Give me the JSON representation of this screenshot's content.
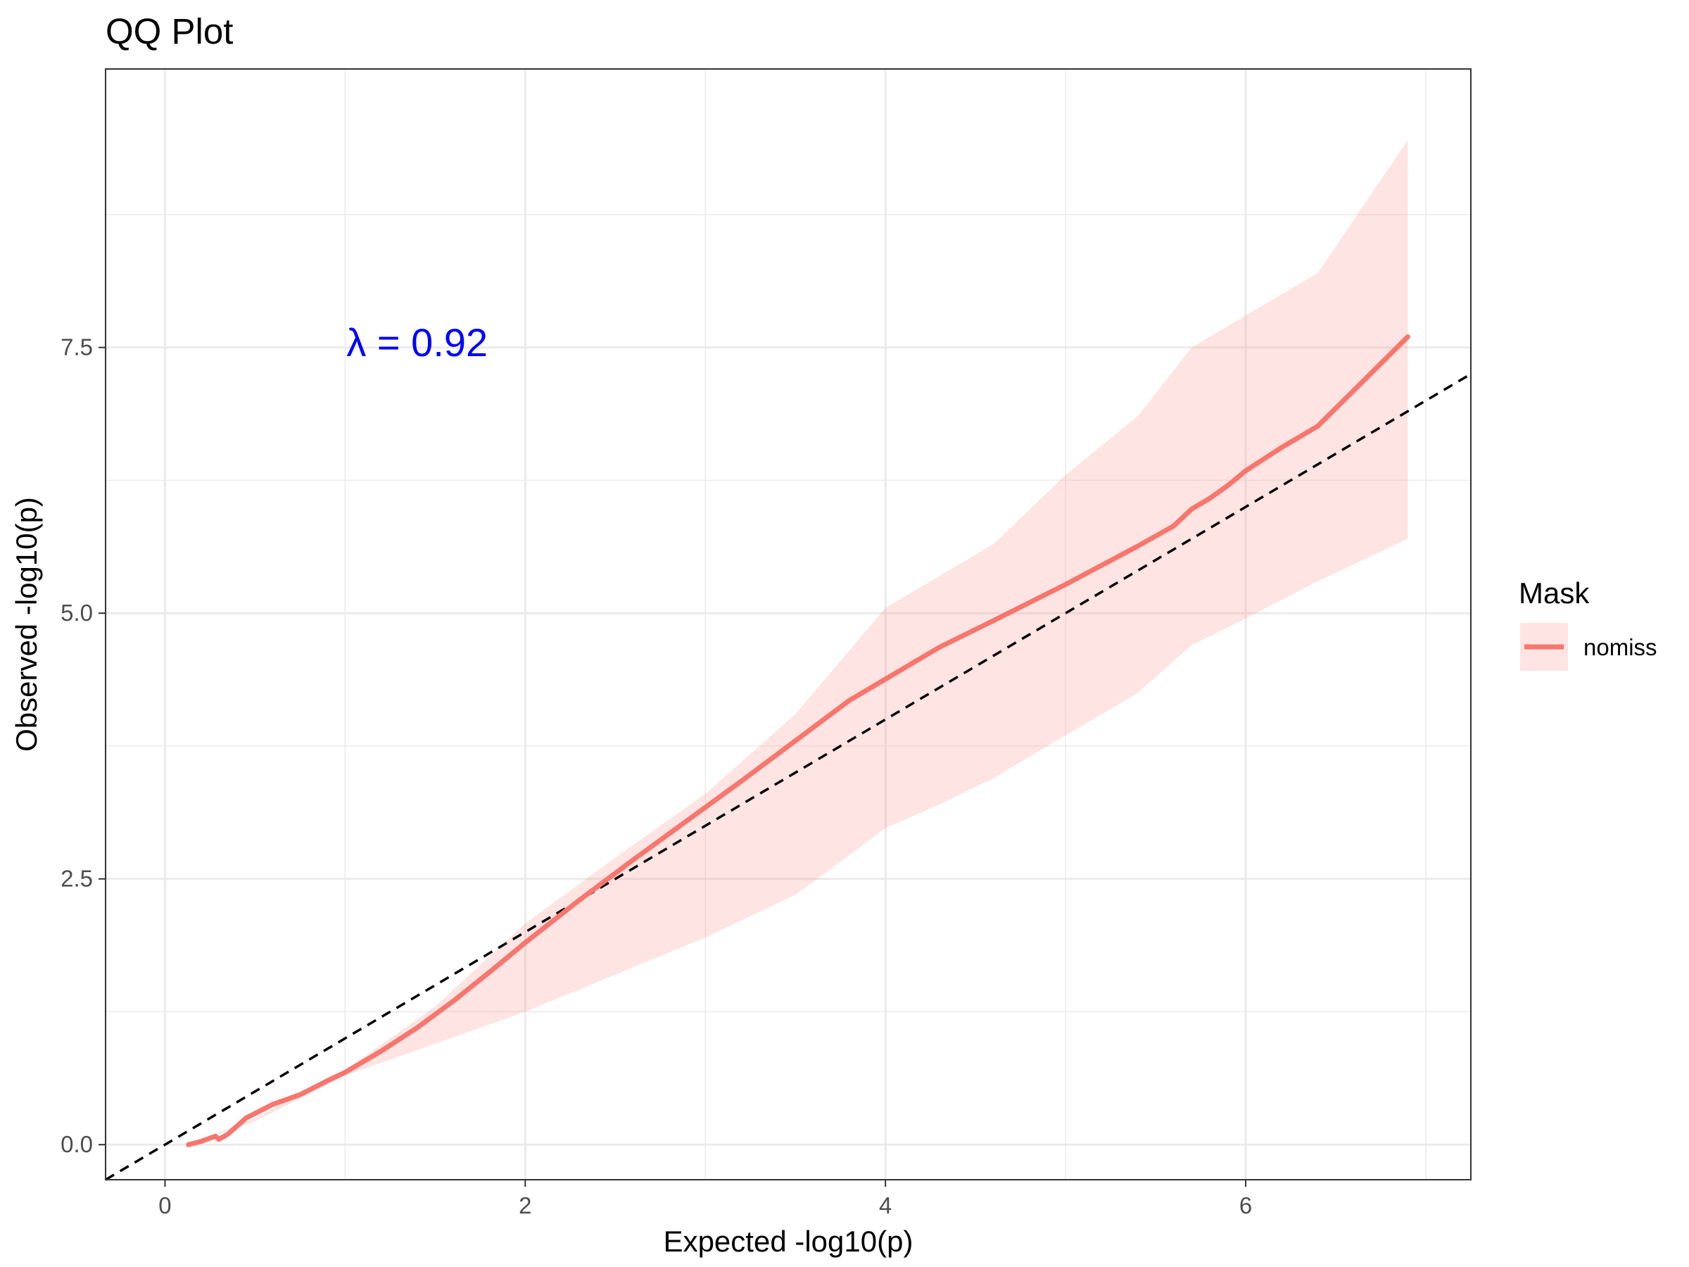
{
  "chart_data": {
    "type": "line",
    "title": "QQ Plot",
    "xlabel": "Expected -log10(p)",
    "ylabel": "Observed -log10(p)",
    "xlim": [
      -0.33,
      7.25
    ],
    "ylim": [
      -0.33,
      10.12
    ],
    "x_ticks": [
      0,
      2,
      4,
      6
    ],
    "x_tick_labels": [
      "0",
      "2",
      "4",
      "6"
    ],
    "y_ticks": [
      0,
      2.5,
      5,
      7.5
    ],
    "y_tick_labels": [
      "0.0",
      "2.5",
      "5.0",
      "7.5"
    ],
    "grid": true,
    "legend": {
      "title": "Mask",
      "position": "right",
      "entries": [
        {
          "name": "nomiss",
          "color": "#F8766D"
        }
      ]
    },
    "annotation": {
      "text": "λ = 0.92",
      "x": 1.4,
      "y": 7.55,
      "color": "#0000FF"
    },
    "reference_line": {
      "slope": 1,
      "intercept": 0,
      "style": "dashed",
      "color": "#000000"
    },
    "series": [
      {
        "name": "nomiss",
        "color": "#F8766D",
        "x": [
          0.13,
          0.2,
          0.28,
          0.3,
          0.35,
          0.45,
          0.6,
          0.75,
          0.9,
          1.0,
          1.2,
          1.4,
          1.6,
          1.8,
          2.0,
          2.3,
          2.6,
          2.9,
          3.2,
          3.5,
          3.8,
          4.0,
          4.3,
          4.6,
          4.8,
          5.0,
          5.2,
          5.4,
          5.6,
          5.7,
          5.8,
          5.9,
          6.0,
          6.2,
          6.4,
          6.9
        ],
        "values": [
          0.0,
          0.03,
          0.08,
          0.05,
          0.1,
          0.25,
          0.38,
          0.47,
          0.6,
          0.68,
          0.88,
          1.1,
          1.35,
          1.62,
          1.9,
          2.3,
          2.68,
          3.05,
          3.42,
          3.8,
          4.18,
          4.38,
          4.68,
          4.93,
          5.1,
          5.27,
          5.45,
          5.63,
          5.82,
          5.98,
          6.08,
          6.2,
          6.34,
          6.56,
          6.76,
          7.6
        ]
      }
    ],
    "confidence_band": {
      "x": [
        0.13,
        0.5,
        1.0,
        1.5,
        2.0,
        2.5,
        3.0,
        3.5,
        3.9,
        4.0,
        4.3,
        4.6,
        5.0,
        5.4,
        5.7,
        6.0,
        6.4,
        6.9
      ],
      "upper": [
        0.0,
        0.25,
        0.7,
        1.3,
        2.08,
        2.7,
        3.3,
        4.05,
        4.85,
        5.05,
        5.35,
        5.65,
        6.3,
        6.85,
        7.5,
        7.8,
        8.2,
        9.45
      ],
      "lower": [
        0.0,
        0.22,
        0.65,
        0.95,
        1.25,
        1.6,
        1.95,
        2.35,
        2.85,
        2.98,
        3.2,
        3.45,
        3.85,
        4.25,
        4.7,
        4.95,
        5.3,
        5.7
      ]
    }
  }
}
